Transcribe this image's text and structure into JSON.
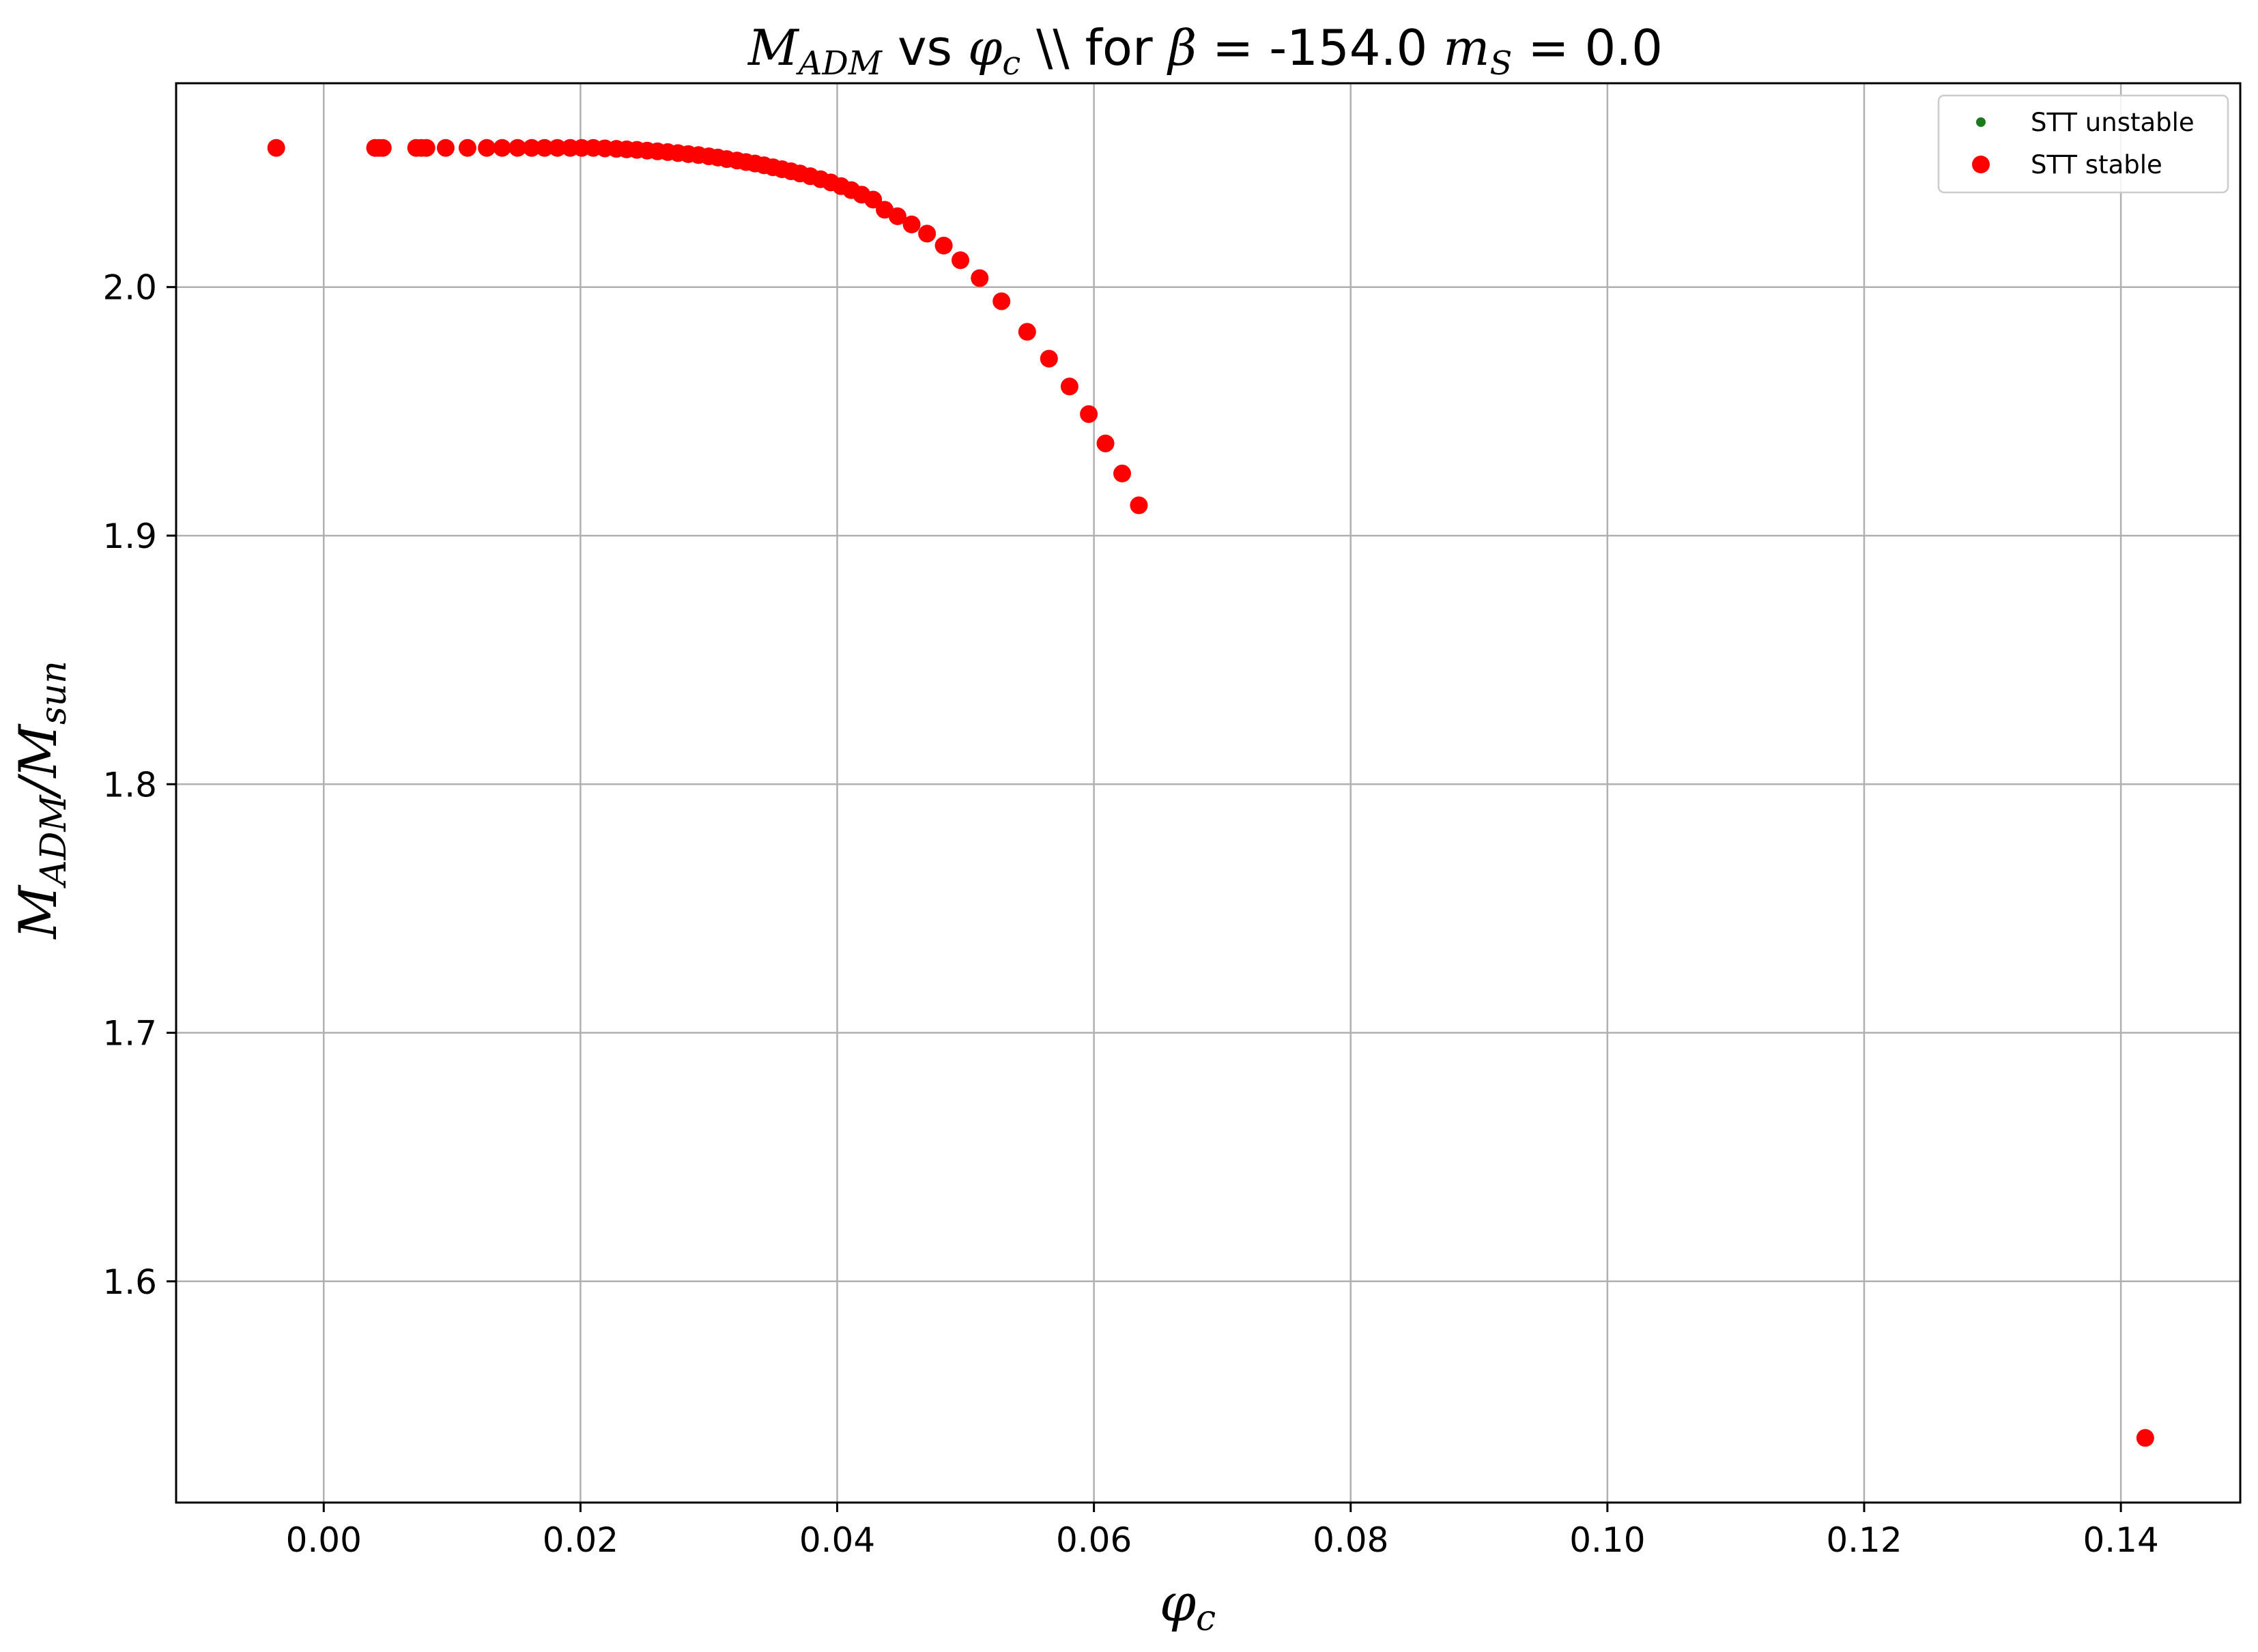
{
  "chart_data": {
    "type": "scatter",
    "title": "M_ADM vs φc \\\\ for β = -154.0 m_S = 0.0",
    "title_parts": {
      "m1": "M",
      "m1_sub": "ADM",
      "t1": " vs ",
      "m2": "φ",
      "m2_sub": "c",
      "t2": " \\\\ for ",
      "m3": "β",
      "t3": " = -154.0 ",
      "m4": "m",
      "m4_sub": "S",
      "t4": " = 0.0"
    },
    "xlabel": "φc",
    "xlabel_parts": {
      "main": "φ",
      "sub": "c"
    },
    "ylabel": "M_ADM/M_sun",
    "ylabel_parts": {
      "m1": "M",
      "s1": "ADM",
      "slash": "/",
      "m2": "M",
      "s2": "sun"
    },
    "xlim": [
      -0.0115,
      0.1493
    ],
    "ylim": [
      1.511,
      2.082
    ],
    "xticks": [
      0.0,
      0.02,
      0.04,
      0.06,
      0.08,
      0.1,
      0.12,
      0.14
    ],
    "xtick_labels": [
      "0.00",
      "0.02",
      "0.04",
      "0.06",
      "0.08",
      "0.10",
      "0.12",
      "0.14"
    ],
    "yticks": [
      1.6,
      1.7,
      1.8,
      1.9,
      2.0
    ],
    "ytick_labels": [
      "1.6",
      "1.7",
      "1.8",
      "1.9",
      "2.0"
    ],
    "grid": true,
    "legend_position": "top-right",
    "series": [
      {
        "name": "STT unstable",
        "color": "#1a7a1a",
        "marker": "small-dot",
        "x": [],
        "y": []
      },
      {
        "name": "STT stable",
        "color": "#ff0000",
        "marker": "dot",
        "x": [
          -0.0037,
          0.004,
          0.0043,
          0.0046,
          0.0072,
          0.0076,
          0.008,
          0.0095,
          0.0112,
          0.0127,
          0.0139,
          0.0151,
          0.0162,
          0.0172,
          0.0182,
          0.0192,
          0.0201,
          0.021,
          0.0219,
          0.0228,
          0.0236,
          0.0244,
          0.0252,
          0.026,
          0.0268,
          0.0276,
          0.0284,
          0.0292,
          0.03,
          0.0307,
          0.0314,
          0.0322,
          0.0329,
          0.0336,
          0.0343,
          0.035,
          0.0357,
          0.0364,
          0.0371,
          0.0379,
          0.0387,
          0.0395,
          0.0403,
          0.0411,
          0.0419,
          0.0428,
          0.0437,
          0.0447,
          0.0458,
          0.047,
          0.0483,
          0.0496,
          0.0511,
          0.0528,
          0.0548,
          0.0565,
          0.0581,
          0.0596,
          0.0609,
          0.0622,
          0.0635,
          0.1419
        ],
        "y": [
          2.056,
          2.056,
          2.056,
          2.056,
          2.056,
          2.056,
          2.056,
          2.056,
          2.056,
          2.056,
          2.056,
          2.056,
          2.056,
          2.056,
          2.056,
          2.056,
          2.056,
          2.056,
          2.0558,
          2.0556,
          2.0554,
          2.0552,
          2.0549,
          2.0546,
          2.0543,
          2.0539,
          2.0535,
          2.0531,
          2.0526,
          2.0521,
          2.0515,
          2.0509,
          2.0503,
          2.0497,
          2.049,
          2.0482,
          2.0474,
          2.0466,
          2.0457,
          2.0446,
          2.0434,
          2.0421,
          2.0406,
          2.039,
          2.0372,
          2.0352,
          2.0311,
          2.0285,
          2.0252,
          2.0215,
          2.0167,
          2.0108,
          2.0036,
          1.9943,
          1.982,
          1.9712,
          1.96,
          1.9489,
          1.9371,
          1.925,
          1.9122,
          1.537
        ]
      }
    ]
  }
}
